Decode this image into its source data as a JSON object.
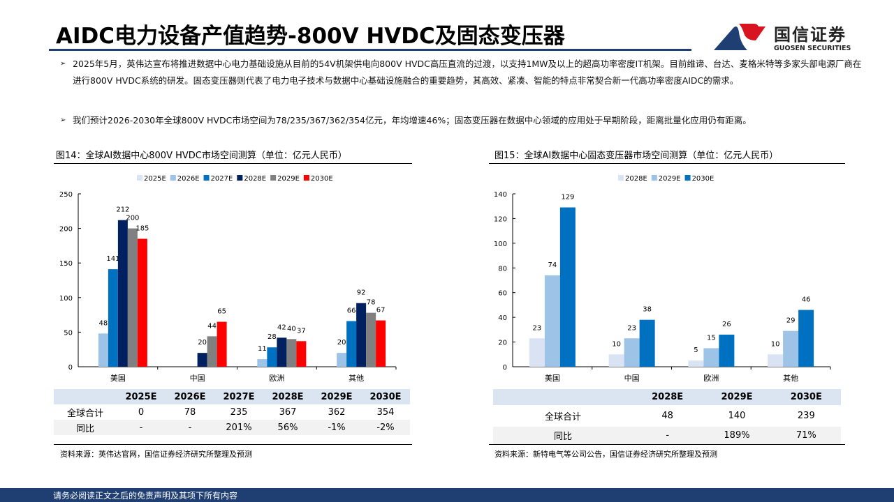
{
  "header": {
    "title": "AIDC电力设备产值趋势-800V HVDC及固态变压器",
    "logo_cn": "国信证券",
    "logo_en": "GUOSEN SECURITIES"
  },
  "bullets": [
    "2025年5月，英伟达宣布将推进数据中心电力基础设施从目前的54V机架供电向800V HVDC高压直流的过渡，以支持1MW及以上的超高功率密度IT机架。目前维谛、台达、麦格米特等多家头部电源厂商在进行800V HVDC系统的研发。固态变压器则代表了电力电子技术与数据中心基础设施融合的重要趋势，其高效、紧凑、智能的特点非常契合新一代高功率密度AIDC的需求。",
    "我们预计2026-2030年全球800V HVDC市场空间为78/235/367/362/354亿元，年均增速46%；固态变压器在数据中心领域的应用处于早期阶段，距离批量化应用仍有距离。"
  ],
  "fig14": {
    "caption": "图14：全球AI数据中心800V HVDC市场空间测算（单位：亿元人民币）",
    "source": "资料来源：英伟达官网，国信证券经济研究所整理及预测",
    "table": {
      "headers": [
        "",
        "2025E",
        "2026E",
        "2027E",
        "2028E",
        "2029E",
        "2030E"
      ],
      "rows": [
        [
          "全球合计",
          "0",
          "78",
          "235",
          "367",
          "362",
          "354"
        ],
        [
          "同比",
          "-",
          "-",
          "201%",
          "56%",
          "-1%",
          "-2%"
        ]
      ]
    }
  },
  "fig15": {
    "caption": "图15：全球AI数据中心固态变压器市场空间测算（单位：亿元人民币）",
    "source": "资料来源：新特电气等公司公告，国信证券经济研究所整理及预测",
    "table": {
      "headers": [
        "",
        "2028E",
        "2029E",
        "2030E"
      ],
      "rows": [
        [
          "全球合计",
          "48",
          "140",
          "239"
        ],
        [
          "同比",
          "-",
          "189%",
          "71%"
        ]
      ]
    }
  },
  "chart_data": [
    {
      "type": "bar",
      "categories": [
        "美国",
        "中国",
        "欧洲",
        "其他"
      ],
      "ylim": [
        0,
        250
      ],
      "yticks": [
        0,
        50,
        100,
        150,
        200,
        250
      ],
      "legend": "top",
      "series": [
        {
          "name": "2025E",
          "color": "#dae3f3",
          "values": [
            0,
            0,
            0,
            0
          ]
        },
        {
          "name": "2026E",
          "color": "#9dc3e6",
          "values": [
            48,
            0,
            11,
            20
          ]
        },
        {
          "name": "2027E",
          "color": "#0070c0",
          "values": [
            141,
            0,
            28,
            66
          ]
        },
        {
          "name": "2028E",
          "color": "#002060",
          "values": [
            212,
            20,
            42,
            92
          ]
        },
        {
          "name": "2029E",
          "color": "#808080",
          "values": [
            200,
            44,
            40,
            78
          ]
        },
        {
          "name": "2030E",
          "color": "#ff0000",
          "values": [
            185,
            65,
            37,
            67
          ]
        }
      ]
    },
    {
      "type": "bar",
      "categories": [
        "美国",
        "中国",
        "欧洲",
        "其他"
      ],
      "ylim": [
        0,
        140
      ],
      "yticks": [
        0,
        20,
        40,
        60,
        80,
        100,
        120,
        140
      ],
      "legend": "top",
      "series": [
        {
          "name": "2028E",
          "color": "#dae3f3",
          "values": [
            23,
            10,
            5,
            10
          ]
        },
        {
          "name": "2029E",
          "color": "#9dc3e6",
          "values": [
            74,
            23,
            15,
            29
          ]
        },
        {
          "name": "2030E",
          "color": "#0070c0",
          "values": [
            129,
            38,
            26,
            46
          ]
        }
      ]
    }
  ],
  "footer": "请务必阅读正文之后的免责声明及其项下所有内容"
}
